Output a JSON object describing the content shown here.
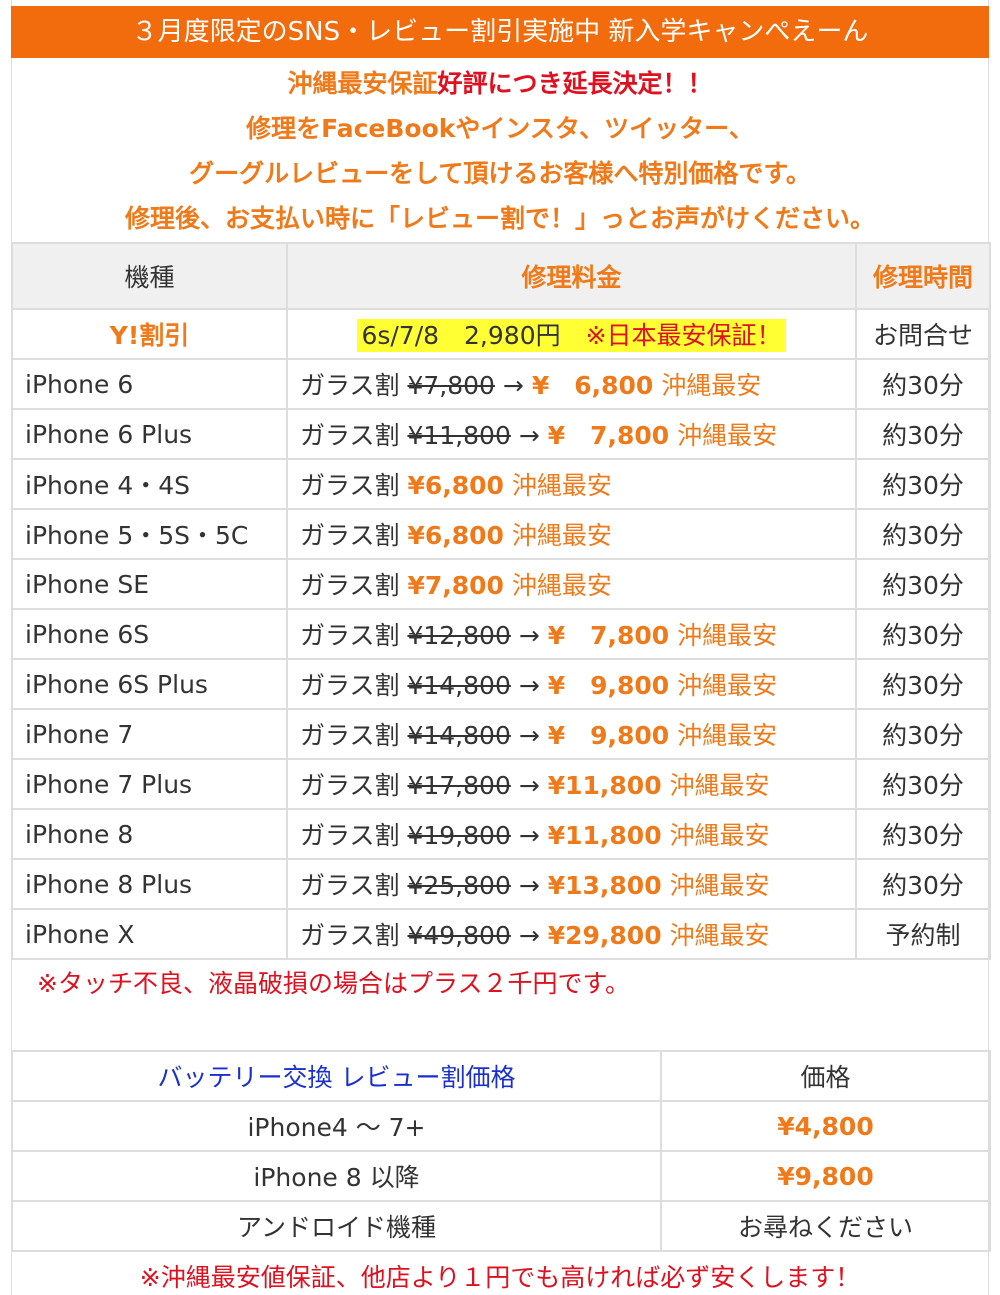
{
  "banner": "３月度限定のSNS・レビュー割引実施中 新入学キャンぺえーん",
  "intro": {
    "line1_orange": "沖縄最安保証",
    "line1_red": "好評につき延長決定！！",
    "line2": "修理をFaceBookやインスタ、ツイッター、",
    "line3": "グーグルレビューをして頂けるお客様へ特別価格です。",
    "line4": "修理後、お支払い時に「レビュー割で！」っとお声がけください。"
  },
  "main_table": {
    "headers": {
      "model": "機種",
      "price": "修理料金",
      "time": "修理時間"
    },
    "promo": {
      "label": "Y!割引",
      "price": "6s/7/8　2,980円　",
      "guarantee": "※日本最安保証！",
      "time": "お問合せ"
    },
    "prefix": "ガラス割",
    "arrow": "→",
    "suffix": "沖縄最安",
    "rows": [
      {
        "model": "iPhone 6",
        "old": "¥7,800",
        "price": "¥　6,800",
        "time": "約30分"
      },
      {
        "model": "iPhone 6 Plus",
        "old": "¥11,800",
        "price": "¥　7,800",
        "time": "約30分"
      },
      {
        "model": "iPhone 4・4S",
        "old": "",
        "price": "¥6,800",
        "time": "約30分"
      },
      {
        "model": "iPhone 5・5S・5C",
        "old": "",
        "price": "¥6,800",
        "time": "約30分"
      },
      {
        "model": "iPhone SE",
        "old": "",
        "price": "¥7,800",
        "time": "約30分"
      },
      {
        "model": "iPhone 6S",
        "old": "¥12,800",
        "price": "¥　7,800",
        "time": "約30分"
      },
      {
        "model": "iPhone 6S Plus",
        "old": "¥14,800",
        "price": "¥　9,800",
        "time": "約30分"
      },
      {
        "model": "iPhone 7",
        "old": "¥14,800",
        "price": "¥　9,800",
        "time": "約30分"
      },
      {
        "model": "iPhone 7 Plus",
        "old": "¥17,800",
        "price": "¥11,800",
        "time": "約30分"
      },
      {
        "model": "iPhone 8",
        "old": "¥19,800",
        "price": "¥11,800",
        "time": "約30分"
      },
      {
        "model": "iPhone 8 Plus",
        "old": "¥25,800",
        "price": "¥13,800",
        "time": "約30分"
      },
      {
        "model": "iPhone X",
        "old": "¥49,800",
        "price": "¥29,800",
        "time": "予約制"
      }
    ]
  },
  "note1": "※タッチ不良、液晶破損の場合はプラス２千円です。",
  "battery_table": {
    "header": "バッテリー交換 レビュー割価格",
    "price_header": "価格",
    "rows": [
      {
        "model": "iPhone4 〜 7+",
        "price": "¥4,800"
      },
      {
        "model": "iPhone 8 以降",
        "price": "¥9,800"
      },
      {
        "model": "アンドロイド機種",
        "price": "お尋ねください"
      }
    ]
  },
  "note2": "※沖縄最安値保証、他店より１円でも高ければ必ず安くします！",
  "colors": {
    "banner": "#f26c0d",
    "accent": "#f07a1a",
    "red": "#e0101f",
    "highlight": "#ffff33",
    "link_blue": "#1a2fd0"
  }
}
